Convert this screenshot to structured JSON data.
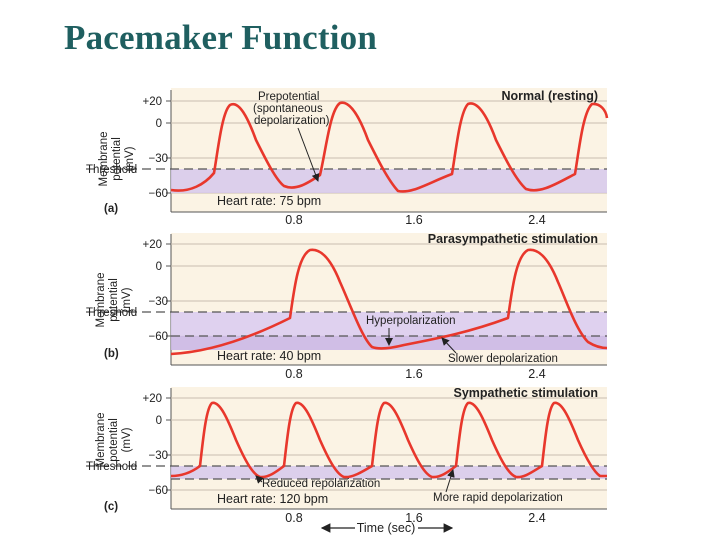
{
  "title": "Pacemaker Function",
  "colors": {
    "title": "#1f5f60",
    "panel_bg": "#fbf3e4",
    "trace": "#e8372c",
    "below_threshold_fill": "#cfc0e6",
    "above_threshold_fill": "#dccdef",
    "dashed_line": "#555555"
  },
  "y_axis": {
    "label_line1": "Membrane",
    "label_line2": "potential",
    "label_line3_a": "(mV)",
    "label_line3_bc": "(mV)",
    "ticks": [
      "+20",
      "0",
      "−30",
      "−60"
    ],
    "threshold_label": "Threshold"
  },
  "x_axis": {
    "ticks": [
      "0.8",
      "1.6",
      "2.4"
    ],
    "label": "Time (sec)"
  },
  "panels": [
    {
      "letter": "(a)",
      "heading": "Normal (resting)",
      "heart_rate": "Heart rate: 75 bpm",
      "annotations": [
        "Prepotential",
        "(spontaneous",
        "depolarization)"
      ]
    },
    {
      "letter": "(b)",
      "heading": "Parasympathetic stimulation",
      "heart_rate": "Heart rate: 40 bpm",
      "annotations": [
        "Hyperpolarization",
        "Slower depolarization"
      ]
    },
    {
      "letter": "(c)",
      "heading": "Sympathetic stimulation",
      "heart_rate": "Heart rate: 120 bpm",
      "annotations": [
        "Reduced repolarization",
        "More rapid depolarization"
      ]
    }
  ]
}
